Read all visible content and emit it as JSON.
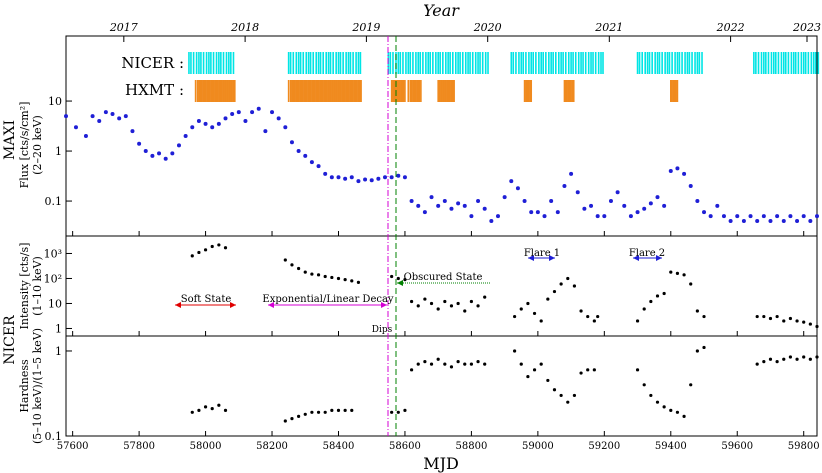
{
  "figure": {
    "top_axis_label": "Year",
    "bottom_axis_label": "MJD",
    "year_ticks": [
      "2017",
      "2018",
      "2019",
      "2020",
      "2021",
      "2022",
      "2023"
    ],
    "mjd_ticks": [
      "57600",
      "57800",
      "58000",
      "58200",
      "58400",
      "58600",
      "58800",
      "59000",
      "59200",
      "59400",
      "59600",
      "59800"
    ],
    "group_label_maxi": "MAXI",
    "group_label_nicer": "NICER"
  },
  "chart_data": [
    {
      "type": "scatter",
      "panel": "maxi",
      "ylabel": "Flux [cts/s/cm²]",
      "ylabel_sub": "(2–20 keV)",
      "yscale": "log",
      "ylim": [
        0.02,
        200
      ],
      "yticks": [
        "0.1",
        "1",
        "10"
      ],
      "xlim": [
        57580,
        59840
      ],
      "mission_labels": [
        {
          "name": "NICER :",
          "color": "#00e5e5"
        },
        {
          "name": "HXMT :",
          "color": "#f08a1e"
        }
      ],
      "series": [
        {
          "color": "#1f1fd6",
          "points": [
            [
              57580,
              5.0
            ],
            [
              57610,
              3.0
            ],
            [
              57640,
              2.0
            ],
            [
              57660,
              5.0
            ],
            [
              57680,
              4.0
            ],
            [
              57700,
              6.0
            ],
            [
              57720,
              5.5
            ],
            [
              57740,
              4.5
            ],
            [
              57760,
              5.0
            ],
            [
              57780,
              2.5
            ],
            [
              57800,
              1.4
            ],
            [
              57820,
              1.0
            ],
            [
              57840,
              0.8
            ],
            [
              57860,
              0.9
            ],
            [
              57880,
              0.7
            ],
            [
              57900,
              0.9
            ],
            [
              57920,
              1.3
            ],
            [
              57940,
              2.0
            ],
            [
              57960,
              3.0
            ],
            [
              57980,
              4.0
            ],
            [
              58000,
              3.5
            ],
            [
              58020,
              3.0
            ],
            [
              58040,
              3.5
            ],
            [
              58060,
              4.5
            ],
            [
              58080,
              5.5
            ],
            [
              58100,
              6.0
            ],
            [
              58120,
              4.0
            ],
            [
              58140,
              6.0
            ],
            [
              58160,
              7.0
            ],
            [
              58180,
              2.5
            ],
            [
              58200,
              6.0
            ],
            [
              58220,
              4.5
            ],
            [
              58240,
              3.0
            ],
            [
              58260,
              1.5
            ],
            [
              58280,
              1.0
            ],
            [
              58300,
              0.8
            ],
            [
              58320,
              0.6
            ],
            [
              58340,
              0.5
            ],
            [
              58360,
              0.35
            ],
            [
              58380,
              0.3
            ],
            [
              58400,
              0.3
            ],
            [
              58420,
              0.28
            ],
            [
              58440,
              0.3
            ],
            [
              58460,
              0.25
            ],
            [
              58480,
              0.27
            ],
            [
              58500,
              0.26
            ],
            [
              58520,
              0.28
            ],
            [
              58540,
              0.3
            ],
            [
              58560,
              0.3
            ],
            [
              58580,
              0.32
            ],
            [
              58600,
              0.3
            ],
            [
              58620,
              0.1
            ],
            [
              58640,
              0.08
            ],
            [
              58660,
              0.06
            ],
            [
              58680,
              0.12
            ],
            [
              58700,
              0.08
            ],
            [
              58720,
              0.1
            ],
            [
              58740,
              0.07
            ],
            [
              58760,
              0.09
            ],
            [
              58780,
              0.08
            ],
            [
              58800,
              0.05
            ],
            [
              58820,
              0.1
            ],
            [
              58840,
              0.07
            ],
            [
              58860,
              0.04
            ],
            [
              58880,
              0.05
            ],
            [
              58900,
              0.12
            ],
            [
              58920,
              0.25
            ],
            [
              58940,
              0.18
            ],
            [
              58960,
              0.1
            ],
            [
              58980,
              0.06
            ],
            [
              59000,
              0.06
            ],
            [
              59020,
              0.05
            ],
            [
              59040,
              0.1
            ],
            [
              59060,
              0.06
            ],
            [
              59080,
              0.2
            ],
            [
              59100,
              0.35
            ],
            [
              59120,
              0.15
            ],
            [
              59140,
              0.07
            ],
            [
              59160,
              0.08
            ],
            [
              59180,
              0.05
            ],
            [
              59200,
              0.05
            ],
            [
              59220,
              0.1
            ],
            [
              59240,
              0.15
            ],
            [
              59260,
              0.08
            ],
            [
              59280,
              0.05
            ],
            [
              59300,
              0.06
            ],
            [
              59320,
              0.07
            ],
            [
              59340,
              0.09
            ],
            [
              59360,
              0.12
            ],
            [
              59380,
              0.08
            ],
            [
              59400,
              0.4
            ],
            [
              59420,
              0.45
            ],
            [
              59440,
              0.35
            ],
            [
              59460,
              0.2
            ],
            [
              59480,
              0.1
            ],
            [
              59500,
              0.06
            ],
            [
              59520,
              0.05
            ],
            [
              59540,
              0.08
            ],
            [
              59560,
              0.05
            ],
            [
              59580,
              0.04
            ],
            [
              59600,
              0.05
            ],
            [
              59620,
              0.04
            ],
            [
              59640,
              0.05
            ],
            [
              59660,
              0.04
            ],
            [
              59680,
              0.05
            ],
            [
              59700,
              0.04
            ],
            [
              59720,
              0.05
            ],
            [
              59740,
              0.04
            ],
            [
              59760,
              0.05
            ],
            [
              59780,
              0.04
            ],
            [
              59800,
              0.05
            ],
            [
              59820,
              0.04
            ],
            [
              59840,
              0.05
            ]
          ]
        }
      ]
    },
    {
      "type": "scatter",
      "panel": "intensity",
      "ylabel": "Intensity [cts/s]",
      "ylabel_sub": "(1–10 keV)",
      "yscale": "log",
      "ylim": [
        0.5,
        5000
      ],
      "yticks": [
        "1",
        "10",
        "10²",
        "10³"
      ],
      "xlim": [
        57580,
        59840
      ],
      "annotations": [
        {
          "text": "Soft State",
          "color": "#e00000"
        },
        {
          "text": "Exponential/Linear Decay",
          "color": "#d400d4"
        },
        {
          "text": "Obscured State",
          "color": "#008000"
        },
        {
          "text": "Flare 1",
          "color": "#1f1fd6"
        },
        {
          "text": "Flare 2",
          "color": "#1f1fd6"
        },
        {
          "text": "Dips",
          "color": "#888888"
        }
      ],
      "series": [
        {
          "color": "#000000",
          "points": [
            [
              57960,
              800
            ],
            [
              57980,
              1100
            ],
            [
              58000,
              1400
            ],
            [
              58020,
              1900
            ],
            [
              58040,
              2200
            ],
            [
              58060,
              1700
            ],
            [
              58240,
              550
            ],
            [
              58260,
              350
            ],
            [
              58280,
              250
            ],
            [
              58300,
              180
            ],
            [
              58320,
              150
            ],
            [
              58340,
              140
            ],
            [
              58360,
              120
            ],
            [
              58380,
              110
            ],
            [
              58400,
              100
            ],
            [
              58420,
              90
            ],
            [
              58440,
              80
            ],
            [
              58460,
              70
            ],
            [
              58560,
              120
            ],
            [
              58580,
              100
            ],
            [
              58600,
              90
            ],
            [
              58620,
              12
            ],
            [
              58640,
              8
            ],
            [
              58660,
              15
            ],
            [
              58680,
              10
            ],
            [
              58700,
              6
            ],
            [
              58720,
              12
            ],
            [
              58740,
              8
            ],
            [
              58760,
              10
            ],
            [
              58780,
              5
            ],
            [
              58800,
              12
            ],
            [
              58820,
              8
            ],
            [
              58840,
              18
            ],
            [
              58930,
              3
            ],
            [
              58950,
              6
            ],
            [
              58970,
              10
            ],
            [
              58990,
              4
            ],
            [
              59010,
              2
            ],
            [
              59030,
              15
            ],
            [
              59050,
              30
            ],
            [
              59070,
              60
            ],
            [
              59090,
              100
            ],
            [
              59110,
              50
            ],
            [
              59130,
              5
            ],
            [
              59150,
              3
            ],
            [
              59170,
              2
            ],
            [
              59180,
              3
            ],
            [
              59300,
              2
            ],
            [
              59320,
              6
            ],
            [
              59340,
              12
            ],
            [
              59360,
              20
            ],
            [
              59380,
              25
            ],
            [
              59400,
              180
            ],
            [
              59420,
              160
            ],
            [
              59440,
              140
            ],
            [
              59460,
              60
            ],
            [
              59480,
              5
            ],
            [
              59500,
              3
            ],
            [
              59660,
              3
            ],
            [
              59680,
              3
            ],
            [
              59700,
              2.5
            ],
            [
              59720,
              3
            ],
            [
              59740,
              2
            ],
            [
              59760,
              2.5
            ],
            [
              59780,
              2
            ],
            [
              59800,
              1.8
            ],
            [
              59820,
              1.5
            ],
            [
              59840,
              1.2
            ]
          ]
        }
      ]
    },
    {
      "type": "scatter",
      "panel": "hardness",
      "ylabel": "Hardness",
      "ylabel_sub": "(5–10 keV)/(1–5 keV)",
      "yscale": "log",
      "ylim": [
        0.1,
        1.5
      ],
      "yticks": [
        "0.1",
        "1"
      ],
      "xlim": [
        57580,
        59840
      ],
      "series": [
        {
          "color": "#000000",
          "points": [
            [
              57960,
              0.19
            ],
            [
              57980,
              0.2
            ],
            [
              58000,
              0.22
            ],
            [
              58020,
              0.21
            ],
            [
              58040,
              0.23
            ],
            [
              58060,
              0.2
            ],
            [
              58240,
              0.15
            ],
            [
              58260,
              0.16
            ],
            [
              58280,
              0.17
            ],
            [
              58300,
              0.18
            ],
            [
              58320,
              0.19
            ],
            [
              58340,
              0.19
            ],
            [
              58360,
              0.19
            ],
            [
              58380,
              0.2
            ],
            [
              58400,
              0.2
            ],
            [
              58420,
              0.2
            ],
            [
              58440,
              0.2
            ],
            [
              58560,
              0.19
            ],
            [
              58580,
              0.19
            ],
            [
              58600,
              0.2
            ],
            [
              58620,
              0.6
            ],
            [
              58640,
              0.7
            ],
            [
              58660,
              0.75
            ],
            [
              58680,
              0.7
            ],
            [
              58700,
              0.8
            ],
            [
              58720,
              0.7
            ],
            [
              58740,
              0.65
            ],
            [
              58760,
              0.75
            ],
            [
              58780,
              0.7
            ],
            [
              58800,
              0.7
            ],
            [
              58820,
              0.75
            ],
            [
              58840,
              0.7
            ],
            [
              58930,
              1.0
            ],
            [
              58950,
              0.7
            ],
            [
              58970,
              0.5
            ],
            [
              58990,
              0.6
            ],
            [
              59010,
              0.7
            ],
            [
              59030,
              0.45
            ],
            [
              59050,
              0.35
            ],
            [
              59070,
              0.3
            ],
            [
              59090,
              0.25
            ],
            [
              59110,
              0.3
            ],
            [
              59130,
              0.55
            ],
            [
              59150,
              0.6
            ],
            [
              59170,
              0.6
            ],
            [
              59300,
              0.6
            ],
            [
              59320,
              0.4
            ],
            [
              59340,
              0.3
            ],
            [
              59360,
              0.25
            ],
            [
              59380,
              0.22
            ],
            [
              59400,
              0.2
            ],
            [
              59420,
              0.19
            ],
            [
              59440,
              0.17
            ],
            [
              59460,
              0.4
            ],
            [
              59480,
              1.0
            ],
            [
              59500,
              1.1
            ],
            [
              59660,
              0.7
            ],
            [
              59680,
              0.75
            ],
            [
              59700,
              0.8
            ],
            [
              59720,
              0.75
            ],
            [
              59740,
              0.8
            ],
            [
              59760,
              0.85
            ],
            [
              59780,
              0.8
            ],
            [
              59800,
              0.85
            ],
            [
              59820,
              0.8
            ],
            [
              59840,
              0.85
            ]
          ]
        }
      ]
    }
  ],
  "colors": {
    "nicer": "#00e5e5",
    "hxmt": "#f08a1e",
    "maxi_points": "#1f1fd6",
    "dips_line": "#d400d4",
    "obscured_line": "#008000"
  }
}
